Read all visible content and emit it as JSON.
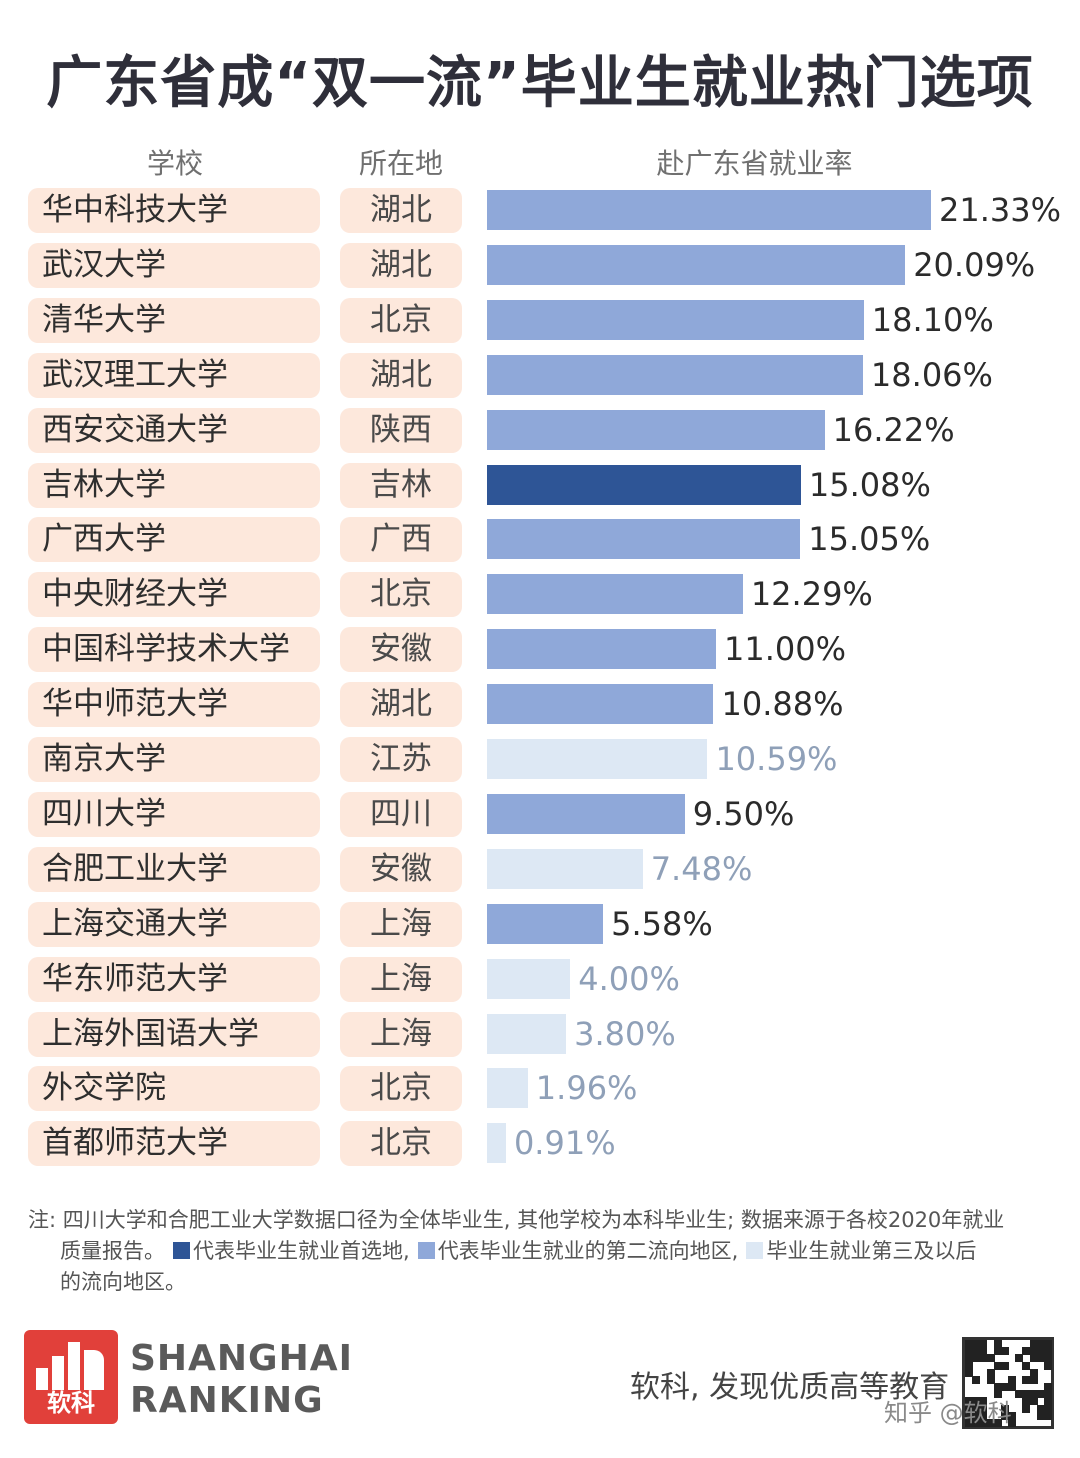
{
  "title": "广东省成“双一流”毕业生就业热门选项",
  "headers": {
    "school": "学校",
    "location": "所在地",
    "rate": "赴广东省就业率"
  },
  "colors": {
    "first": "#2e5596",
    "second": "#8fa8d9",
    "third": "#dde8f4"
  },
  "chart_data": {
    "type": "bar",
    "orientation": "horizontal",
    "title": "广东省成“双一流”毕业生就业热门选项",
    "xlabel": "赴广东省就业率",
    "unit": "%",
    "xlim": [
      0,
      21.33
    ],
    "rows": [
      {
        "school": "华中科技大学",
        "location": "湖北",
        "value": 21.33,
        "label": "21.33%",
        "rank": "second"
      },
      {
        "school": "武汉大学",
        "location": "湖北",
        "value": 20.09,
        "label": "20.09%",
        "rank": "second"
      },
      {
        "school": "清华大学",
        "location": "北京",
        "value": 18.1,
        "label": "18.10%",
        "rank": "second"
      },
      {
        "school": "武汉理工大学",
        "location": "湖北",
        "value": 18.06,
        "label": "18.06%",
        "rank": "second"
      },
      {
        "school": "西安交通大学",
        "location": "陕西",
        "value": 16.22,
        "label": "16.22%",
        "rank": "second"
      },
      {
        "school": "吉林大学",
        "location": "吉林",
        "value": 15.08,
        "label": "15.08%",
        "rank": "first"
      },
      {
        "school": "广西大学",
        "location": "广西",
        "value": 15.05,
        "label": "15.05%",
        "rank": "second"
      },
      {
        "school": "中央财经大学",
        "location": "北京",
        "value": 12.29,
        "label": "12.29%",
        "rank": "second"
      },
      {
        "school": "中国科学技术大学",
        "location": "安徽",
        "value": 11.0,
        "label": "11.00%",
        "rank": "second"
      },
      {
        "school": "华中师范大学",
        "location": "湖北",
        "value": 10.88,
        "label": "10.88%",
        "rank": "second"
      },
      {
        "school": "南京大学",
        "location": "江苏",
        "value": 10.59,
        "label": "10.59%",
        "rank": "third"
      },
      {
        "school": "四川大学",
        "location": "四川",
        "value": 9.5,
        "label": "9.50%",
        "rank": "second"
      },
      {
        "school": "合肥工业大学",
        "location": "安徽",
        "value": 7.48,
        "label": "7.48%",
        "rank": "third"
      },
      {
        "school": "上海交通大学",
        "location": "上海",
        "value": 5.58,
        "label": "5.58%",
        "rank": "second"
      },
      {
        "school": "华东师范大学",
        "location": "上海",
        "value": 4.0,
        "label": "4.00%",
        "rank": "third"
      },
      {
        "school": "上海外国语大学",
        "location": "上海",
        "value": 3.8,
        "label": "3.80%",
        "rank": "third"
      },
      {
        "school": "外交学院",
        "location": "北京",
        "value": 1.96,
        "label": "1.96%",
        "rank": "third"
      },
      {
        "school": "首都师范大学",
        "location": "北京",
        "value": 0.91,
        "label": "0.91%",
        "rank": "third"
      }
    ]
  },
  "note": {
    "line1": "注: 四川大学和合肥工业大学数据口径为全体毕业生, 其他学校为本科毕业生; 数据来源于各校2020年就业",
    "line2_prefix": "质量报告。",
    "legend_first": "代表毕业生就业首选地,",
    "legend_second": "代表毕业生就业的第二流向地区,",
    "legend_third": "毕业生就业第三及以后",
    "line3": "的流向地区。"
  },
  "footer": {
    "logo_text": "软科",
    "brand_line1": "SHANGHAI",
    "brand_line2": "RANKING",
    "slogan": "软科, 发现优质高等教育",
    "watermark": "知乎 @软科"
  }
}
